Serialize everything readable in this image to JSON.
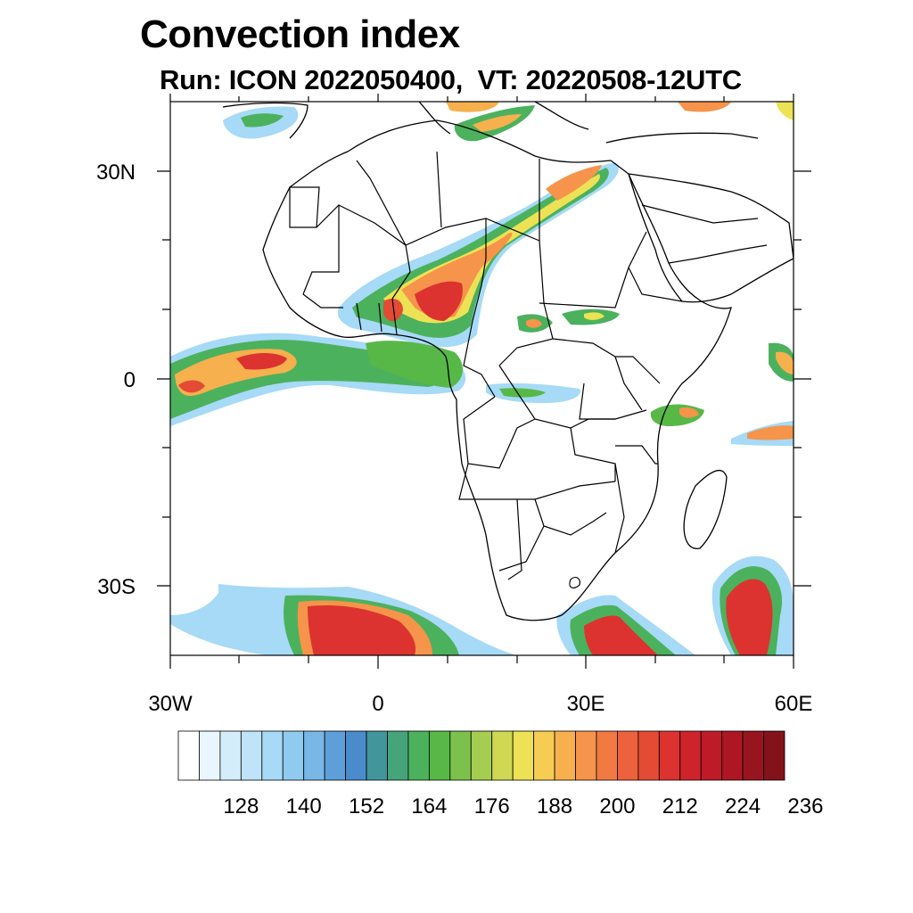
{
  "title": "Convection index",
  "subtitle": "Run: ICON 2022050400,  VT: 20220508-12UTC",
  "map": {
    "lat_labels": [
      "30N",
      "0",
      "30S"
    ],
    "lon_labels": [
      "30W",
      "0",
      "30E",
      "60E"
    ],
    "extent": {
      "lon": [
        -30,
        60
      ],
      "lat": [
        -40,
        40
      ]
    }
  },
  "colorbar": {
    "labels": [
      "128",
      "140",
      "152",
      "164",
      "176",
      "188",
      "200",
      "212",
      "224",
      "236"
    ],
    "colors": [
      "#ffffff",
      "#eaf6fd",
      "#d4edfb",
      "#bfe4f9",
      "#a6daf6",
      "#8ecbef",
      "#78b7e6",
      "#5f9fd9",
      "#4a8ccb",
      "#42959b",
      "#46a47a",
      "#4cb15d",
      "#57b848",
      "#7cc14c",
      "#a5cd50",
      "#cfd753",
      "#ede255",
      "#f7cc52",
      "#f6b04d",
      "#f5944a",
      "#f17a43",
      "#ec623c",
      "#e34b35",
      "#dc3330",
      "#cf232c",
      "#bf1a27",
      "#ad1623",
      "#98151f",
      "#84121b"
    ]
  }
}
